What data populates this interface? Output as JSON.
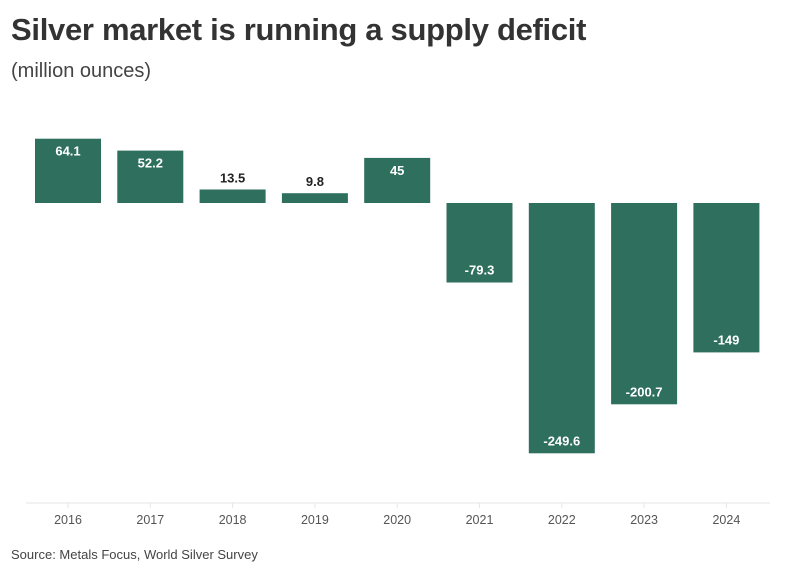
{
  "chart_data": {
    "type": "bar",
    "title": "Silver market is running a supply deficit",
    "subtitle": "(million ounces)",
    "xlabel": "",
    "ylabel": "",
    "categories": [
      "2016",
      "2017",
      "2018",
      "2019",
      "2020",
      "2021",
      "2022",
      "2023",
      "2024"
    ],
    "values": [
      64.1,
      52.2,
      13.5,
      9.8,
      45,
      -79.3,
      -249.6,
      -200.7,
      -149
    ],
    "value_labels": [
      "64.1",
      "52.2",
      "13.5",
      "9.8",
      "45",
      "-79.3",
      "-249.6",
      "-200.7",
      "-149"
    ],
    "ylim": [
      -300,
      65
    ],
    "grid": false,
    "legend": "none",
    "bar_color": "#2f6f5e",
    "source": "Source: Metals Focus, World Silver Survey"
  }
}
